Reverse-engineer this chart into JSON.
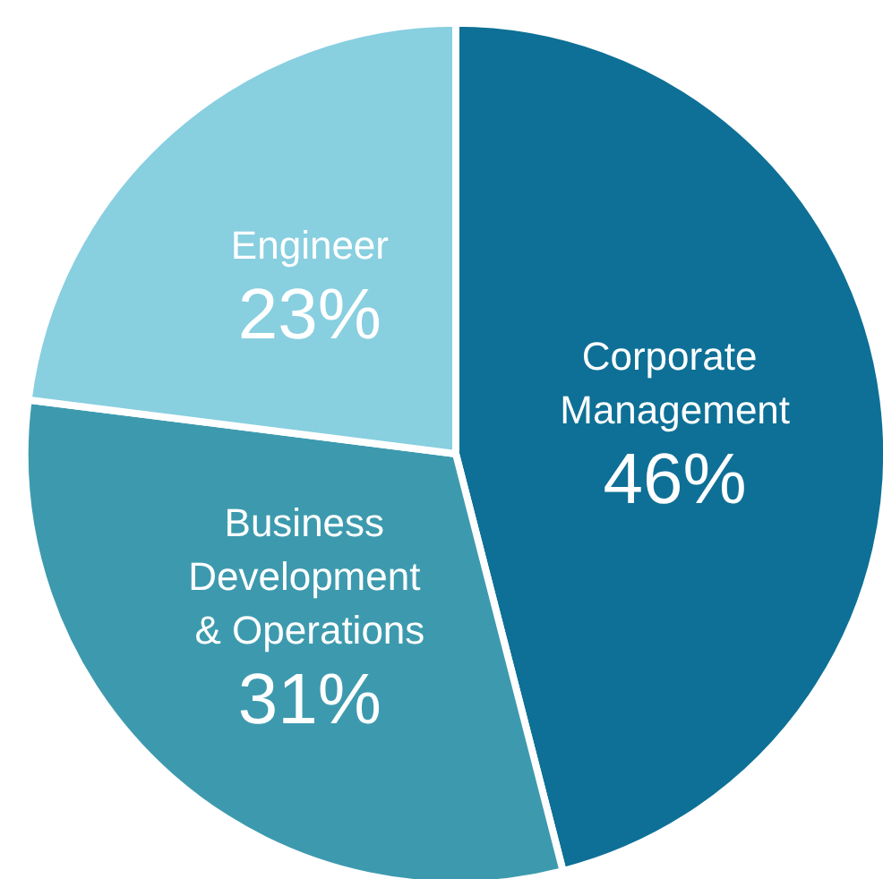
{
  "chart_data": {
    "type": "pie",
    "categories": [
      "Corporate Management",
      "Business Development & Operations",
      "Engineer"
    ],
    "values": [
      46,
      31,
      23
    ],
    "value_labels": [
      "46%",
      "31%",
      "23%"
    ],
    "colors": [
      "#0e7096",
      "#3d9aae",
      "#88cfe0"
    ]
  }
}
